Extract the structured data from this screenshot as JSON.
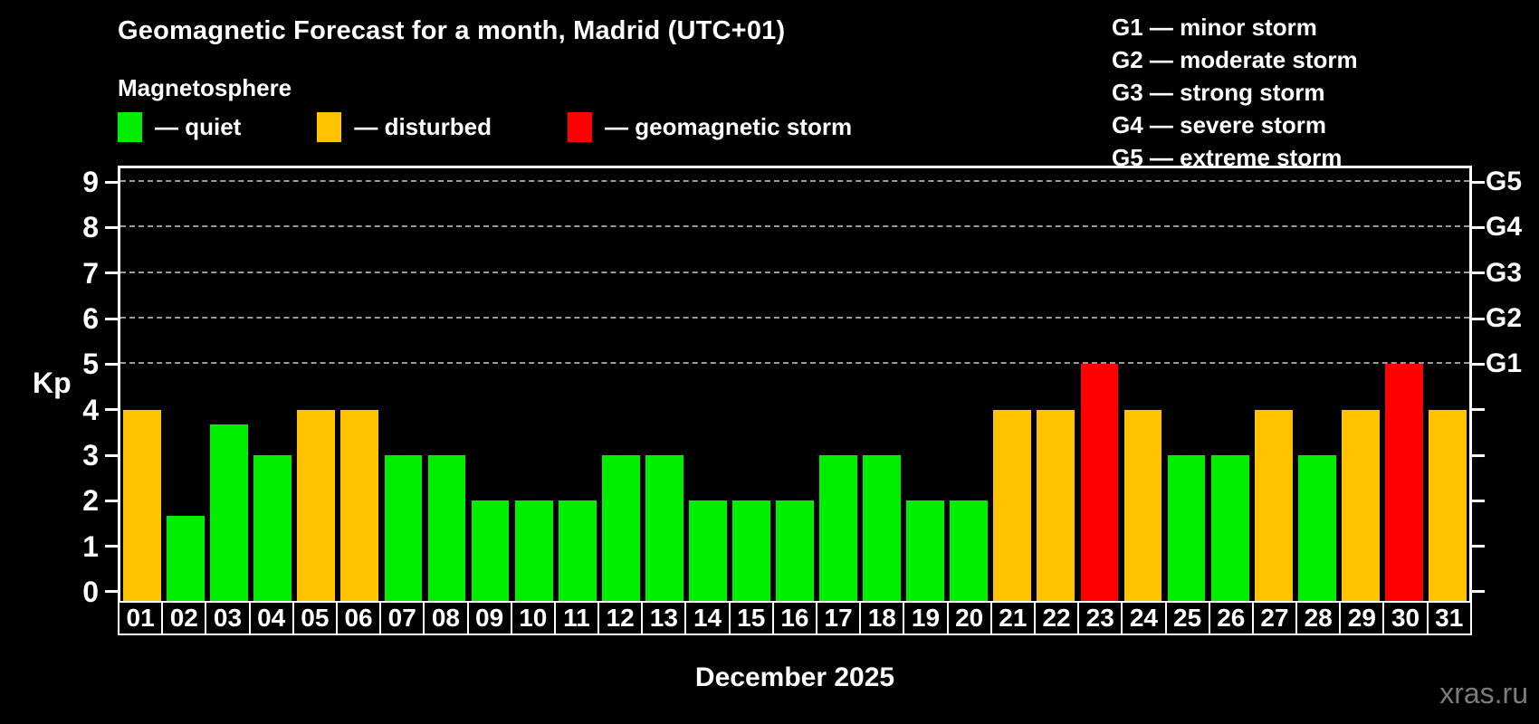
{
  "title": "Geomagnetic Forecast for a month, Madrid (UTC+01)",
  "subtitle": "Magnetosphere",
  "legend": {
    "quiet_label": "— quiet",
    "disturbed_label": "— disturbed",
    "storm_label": "— geomagnetic storm"
  },
  "g_legend": [
    "G1 — minor storm",
    "G2 — moderate storm",
    "G3 — strong storm",
    "G4 — severe storm",
    "G5 — extreme storm"
  ],
  "axis": {
    "left_label": "Kp",
    "left_ticks": [
      "0",
      "1",
      "2",
      "3",
      "4",
      "5",
      "6",
      "7",
      "8",
      "9"
    ],
    "right_ticks": [
      {
        "kp": 5,
        "label": "G1"
      },
      {
        "kp": 6,
        "label": "G2"
      },
      {
        "kp": 7,
        "label": "G3"
      },
      {
        "kp": 8,
        "label": "G4"
      },
      {
        "kp": 9,
        "label": "G5"
      }
    ]
  },
  "footer": {
    "month_label": "December 2025",
    "watermark": "xras.ru"
  },
  "colors": {
    "background": "#000000",
    "quiet": "#00ee00",
    "disturbed": "#ffc300",
    "storm": "#ff0000",
    "grid": "#9a9a9a",
    "axis": "#ffffff",
    "watermark": "#7b7b7b"
  },
  "chart_data": {
    "type": "bar",
    "title": "Geomagnetic Forecast for a month, Madrid (UTC+01)",
    "xlabel": "December 2025",
    "ylabel": "Kp",
    "ylim": [
      0,
      9
    ],
    "grid_on": true,
    "grid_kp_levels": [
      5,
      6,
      7,
      8,
      9
    ],
    "legend_position": "top-left",
    "categories": [
      "01",
      "02",
      "03",
      "04",
      "05",
      "06",
      "07",
      "08",
      "09",
      "10",
      "11",
      "12",
      "13",
      "14",
      "15",
      "16",
      "17",
      "18",
      "19",
      "20",
      "21",
      "22",
      "23",
      "24",
      "25",
      "26",
      "27",
      "28",
      "29",
      "30",
      "31"
    ],
    "values": [
      4,
      1.67,
      3.67,
      3,
      4,
      4,
      3,
      3,
      2,
      2,
      2,
      3,
      3,
      2,
      2,
      2,
      3,
      3,
      2,
      2,
      4,
      4,
      5,
      4,
      3,
      3,
      4,
      3,
      4,
      5,
      4
    ],
    "statuses": [
      "disturbed",
      "quiet",
      "quiet",
      "quiet",
      "disturbed",
      "disturbed",
      "quiet",
      "quiet",
      "quiet",
      "quiet",
      "quiet",
      "quiet",
      "quiet",
      "quiet",
      "quiet",
      "quiet",
      "quiet",
      "quiet",
      "quiet",
      "quiet",
      "disturbed",
      "disturbed",
      "storm",
      "disturbed",
      "quiet",
      "quiet",
      "disturbed",
      "quiet",
      "disturbed",
      "storm",
      "disturbed"
    ]
  }
}
